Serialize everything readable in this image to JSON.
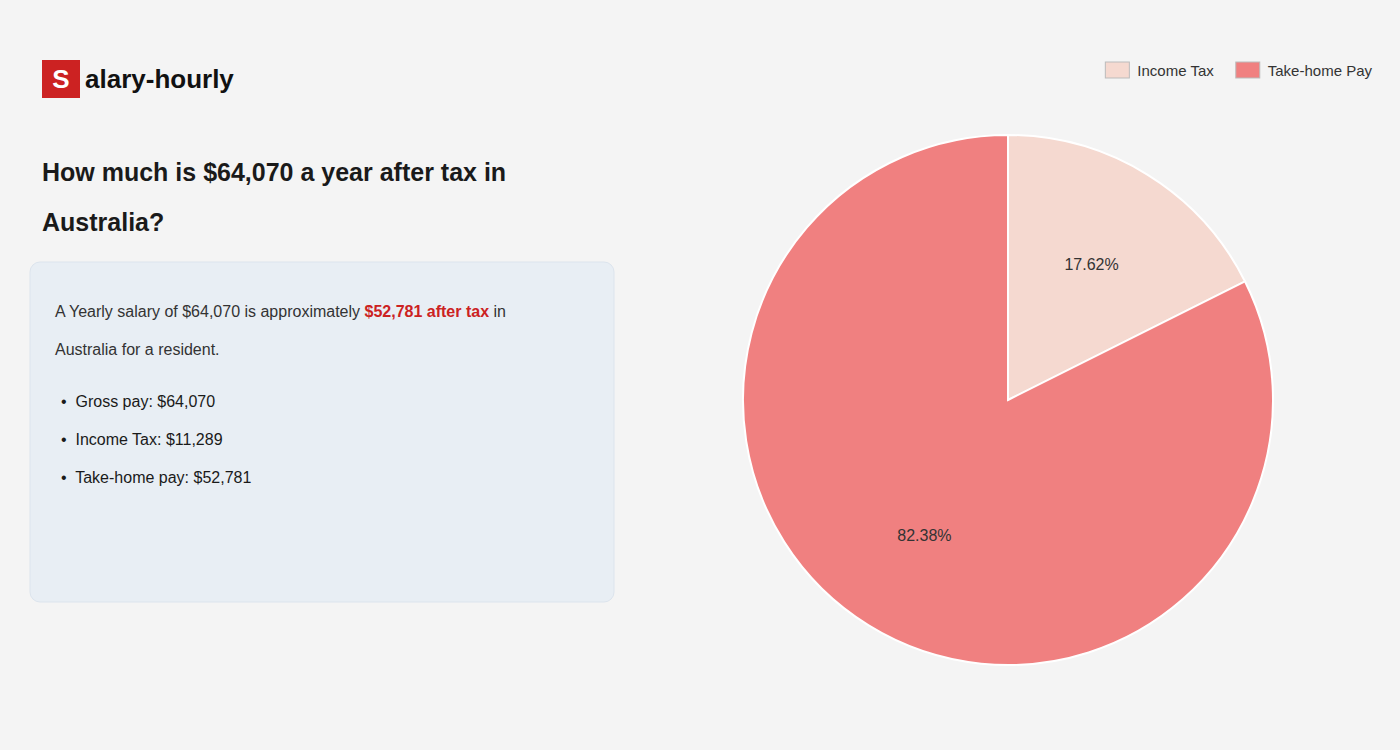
{
  "chart_data": {
    "type": "pie",
    "title": [
      "How much is $64,070 a year after tax in",
      "Australia?"
    ],
    "annotations": [
      {
        "text": "S",
        "color": "#cc2222"
      },
      {
        "text": "alary-hourly"
      },
      {
        "text": "A Yearly salary of $64,070 is approximately "
      },
      {
        "text": "$52,781 after tax",
        "color": "#cc2222"
      },
      {
        "text": " in"
      },
      {
        "text": "Australia for a resident."
      },
      {
        "text": "•  Gross pay: $64,070"
      },
      {
        "text": "•  Income Tax: $11,289"
      },
      {
        "text": "•  Take-home pay: $52,781"
      }
    ],
    "categories": [
      "Income Tax",
      "Take-home Pay"
    ],
    "values": [
      17.62,
      82.38
    ],
    "value_labels": [
      "17.62%",
      "82.38%"
    ],
    "colors": [
      "#f5d9d0",
      "#f08080"
    ],
    "data_labels": true,
    "legend": "upper right"
  }
}
